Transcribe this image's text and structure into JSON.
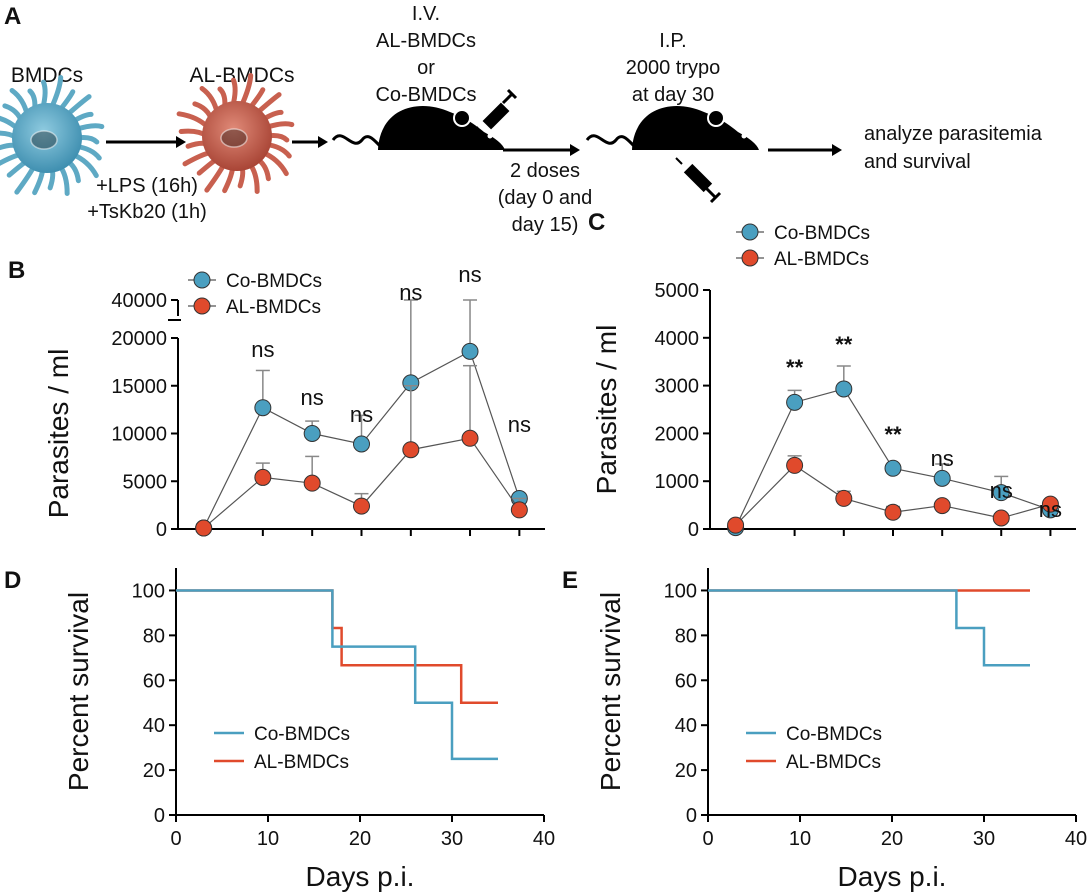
{
  "schematic": {
    "panel_label": "A",
    "bmdcs_label": "BMDCs",
    "al_bmdcs_label": "AL-BMDCs",
    "treatment_line1": "+LPS (16h)",
    "treatment_line2": "+TsKb20 (1h)",
    "iv_line1": "I.V.",
    "iv_line2": "AL-BMDCs",
    "iv_line3": "or",
    "iv_line4": "Co-BMDCs",
    "doses_line1": "2 doses",
    "doses_line2": "(day 0 and",
    "doses_line3": "day 15)",
    "ip_line1": "I.P.",
    "ip_line2": "2000 trypo",
    "ip_line3": "at day 30",
    "analyze_line1": "analyze parasitemia",
    "analyze_line2": "and survival",
    "colors": {
      "cell_blue": "#5ea9c4",
      "cell_red": "#c8604f",
      "mouse": "#000000"
    }
  },
  "colors": {
    "co": "#4a9fc0",
    "al": "#e04a2c"
  },
  "chart_data": [
    {
      "id": "B",
      "type": "line",
      "panel_label": "B",
      "ylabel": "Parasites / ml",
      "xlabel": "",
      "legend": [
        "Co-BMDCs",
        "AL-BMDCs"
      ],
      "x": [
        3,
        9,
        14,
        19,
        24,
        30,
        35
      ],
      "ylim": [
        0,
        20000
      ],
      "ybreak_label": "40000",
      "yticks": [
        0,
        5000,
        10000,
        15000,
        20000
      ],
      "ytick_labels": [
        "0",
        "5000",
        "10000",
        "15000",
        "20000"
      ],
      "series": [
        {
          "name": "Co-BMDCs",
          "values": [
            100,
            12700,
            10000,
            8900,
            15300,
            18600,
            3200
          ],
          "err": [
            0,
            3900,
            1300,
            3000,
            11700,
            14700,
            0
          ]
        },
        {
          "name": "AL-BMDCs",
          "values": [
            100,
            5400,
            4800,
            2400,
            8300,
            9500,
            2000
          ],
          "err": [
            0,
            1500,
            2800,
            1300,
            6700,
            7600,
            1200
          ]
        }
      ],
      "annotations": [
        "ns",
        "ns",
        "ns",
        "ns",
        "ns",
        "ns"
      ]
    },
    {
      "id": "C",
      "type": "line",
      "panel_label": "C",
      "ylabel": "Parasites / ml",
      "xlabel": "",
      "legend": [
        "Co-BMDCs",
        "AL-BMDCs"
      ],
      "x": [
        3,
        9,
        14,
        19,
        24,
        30,
        35
      ],
      "ylim": [
        0,
        5000
      ],
      "yticks": [
        0,
        1000,
        2000,
        3000,
        4000,
        5000
      ],
      "ytick_labels": [
        "0",
        "1000",
        "2000",
        "3000",
        "4000",
        "5000"
      ],
      "series": [
        {
          "name": "Co-BMDCs",
          "values": [
            30,
            2650,
            2930,
            1270,
            1060,
            760,
            400
          ],
          "err": [
            0,
            250,
            480,
            0,
            300,
            340,
            0
          ]
        },
        {
          "name": "AL-BMDCs",
          "values": [
            80,
            1330,
            640,
            350,
            490,
            230,
            520
          ],
          "err": [
            0,
            200,
            150,
            120,
            0,
            0,
            0
          ]
        }
      ],
      "annotations": [
        "**",
        "**",
        "**",
        "ns",
        "ns",
        "ns"
      ]
    },
    {
      "id": "D",
      "type": "line",
      "panel_label": "D",
      "ylabel": "Percent survival",
      "xlabel": "Days p.i.",
      "xlim": [
        0,
        40
      ],
      "xticks": [
        0,
        10,
        20,
        30,
        40
      ],
      "ylim": [
        0,
        110
      ],
      "yticks": [
        0,
        20,
        40,
        60,
        80,
        100
      ],
      "legend": [
        "Co-BMDCs",
        "AL-BMDCs"
      ],
      "series": [
        {
          "name": "Co-BMDCs",
          "steps": [
            [
              0,
              100
            ],
            [
              17,
              75
            ],
            [
              26,
              50
            ],
            [
              30,
              25
            ],
            [
              35,
              25
            ]
          ]
        },
        {
          "name": "AL-BMDCs",
          "steps": [
            [
              0,
              100
            ],
            [
              17,
              83.3
            ],
            [
              18,
              66.7
            ],
            [
              31,
              50
            ],
            [
              35,
              50
            ]
          ]
        }
      ]
    },
    {
      "id": "E",
      "type": "line",
      "panel_label": "E",
      "ylabel": "Percent survival",
      "xlabel": "Days p.i.",
      "xlim": [
        0,
        40
      ],
      "xticks": [
        0,
        10,
        20,
        30,
        40
      ],
      "ylim": [
        0,
        110
      ],
      "yticks": [
        0,
        20,
        40,
        60,
        80,
        100
      ],
      "legend": [
        "Co-BMDCs",
        "AL-BMDCs"
      ],
      "series": [
        {
          "name": "Co-BMDCs",
          "steps": [
            [
              0,
              100
            ],
            [
              27,
              83.3
            ],
            [
              30,
              66.7
            ],
            [
              35,
              66.7
            ]
          ]
        },
        {
          "name": "AL-BMDCs",
          "steps": [
            [
              0,
              100
            ],
            [
              35,
              100
            ]
          ]
        }
      ]
    }
  ]
}
